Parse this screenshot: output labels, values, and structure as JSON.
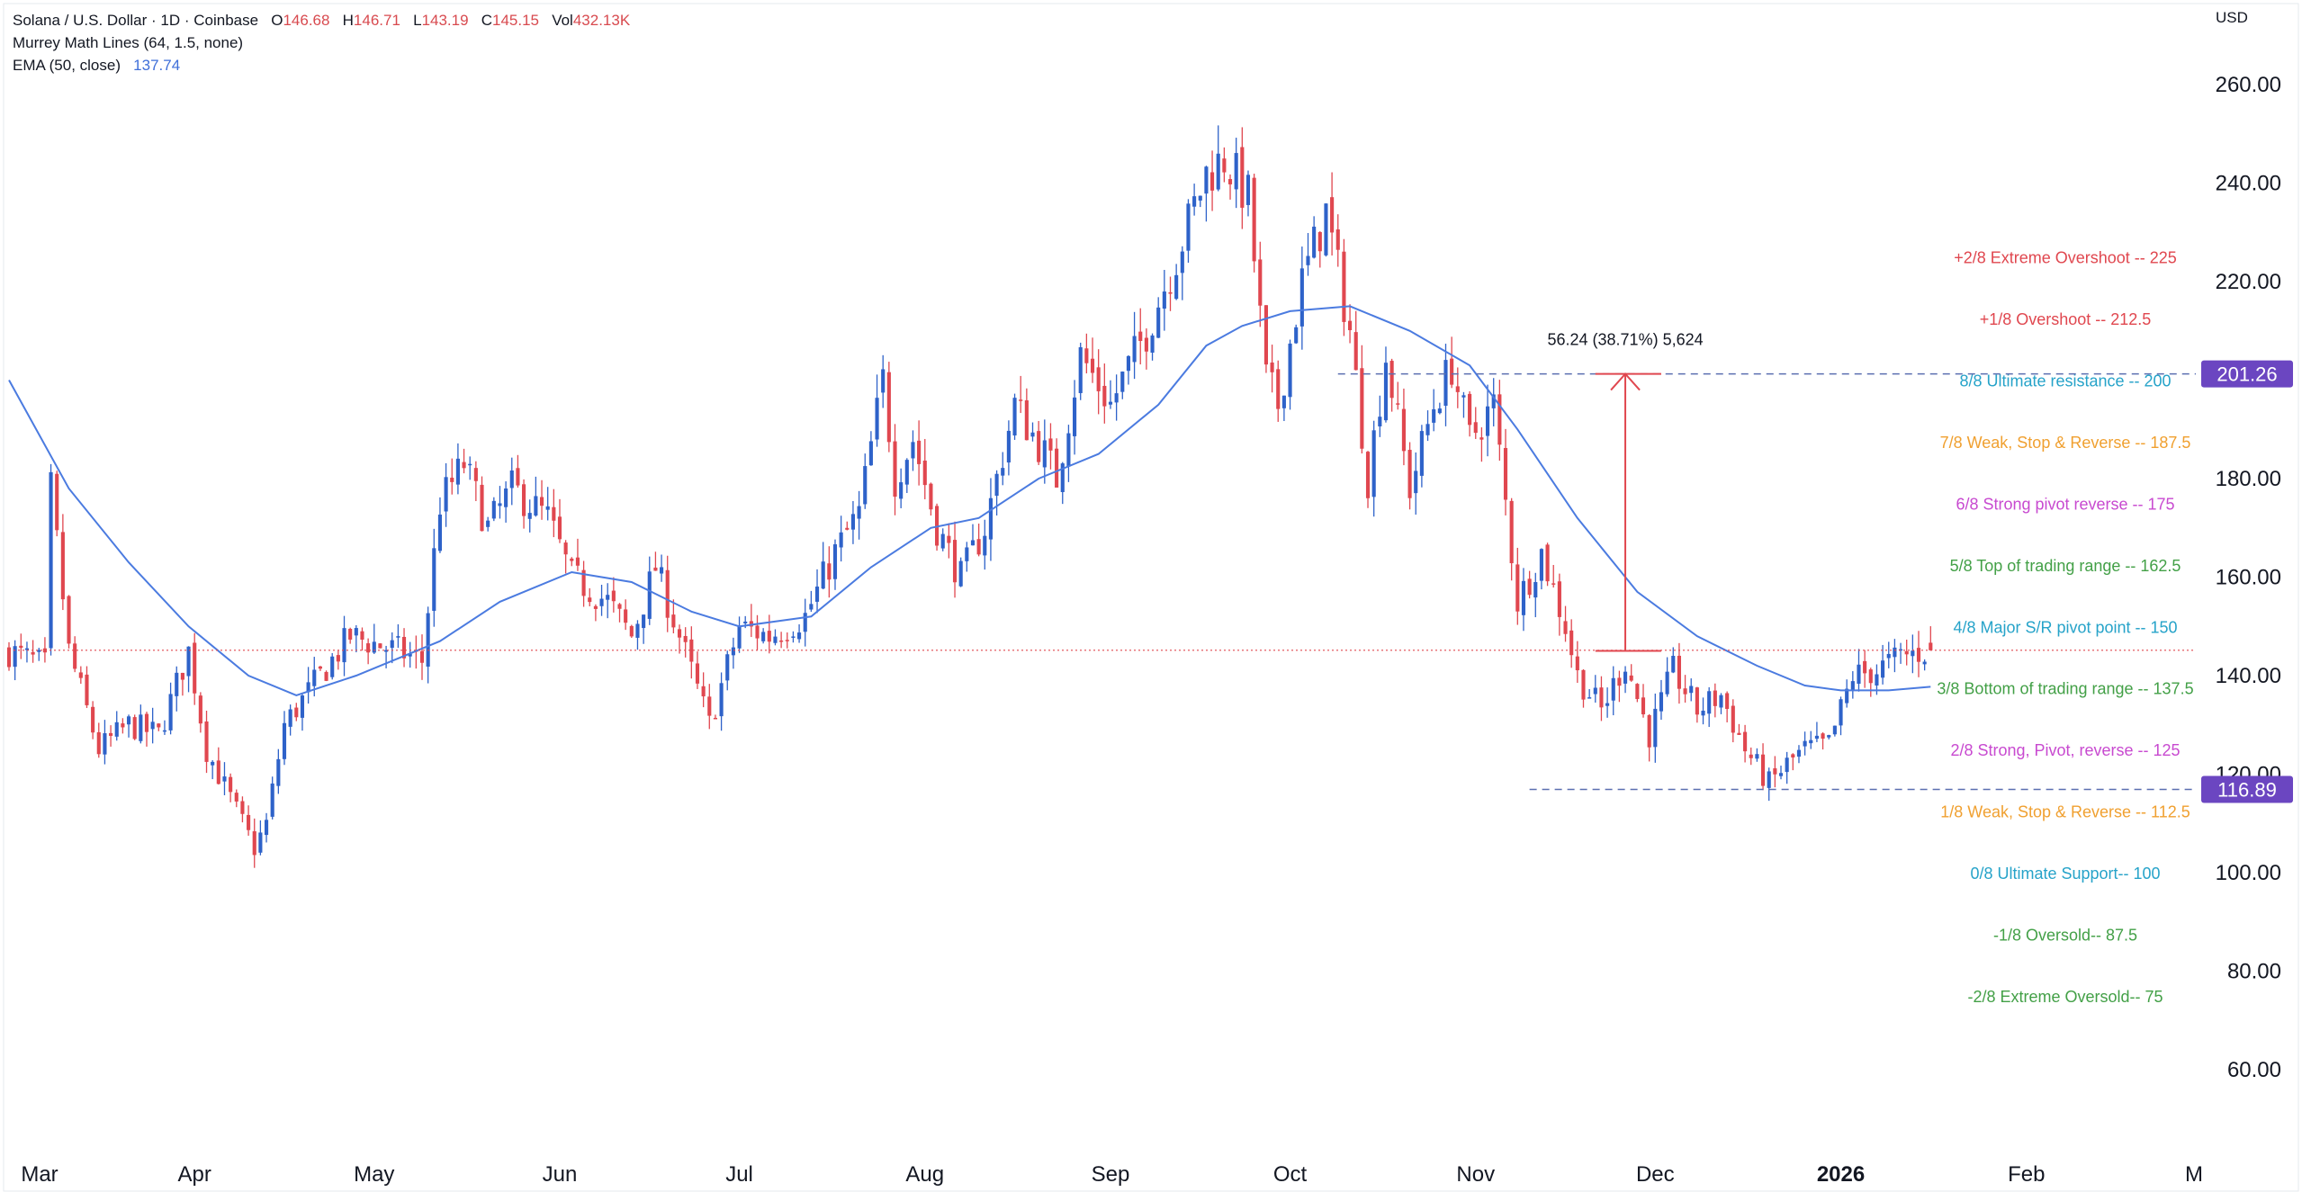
{
  "header": {
    "symbol": "Solana / U.S. Dollar · 1D · Coinbase",
    "o_label": "O",
    "o_value": "146.68",
    "h_label": "H",
    "h_value": "146.71",
    "l_label": "L",
    "l_value": "143.19",
    "c_label": "C",
    "c_value": "145.15",
    "vol_label": "Vol",
    "vol_value": "432.13K",
    "indicator_murrey": "Murrey Math Lines (64, 1.5, none)",
    "indicator_ema": "EMA (50, close)",
    "ema_value": "137.74",
    "currency": "USD"
  },
  "colors": {
    "up": "#2e62c9",
    "down": "#e0474f",
    "ema": "#4b7be0",
    "price_line": "#e0474f",
    "badge": "#6b46c1",
    "measure": "#e0474f"
  },
  "chart_data": {
    "type": "candlestick",
    "title": "Solana / U.S. Dollar · 1D · Coinbase",
    "ylim": [
      48,
      268
    ],
    "y_ticks": [
      "260.00",
      "240.00",
      "220.00",
      "200.00",
      "180.00",
      "160.00",
      "140.00",
      "120.00",
      "100.00",
      "80.00",
      "60.00"
    ],
    "y_tick_values": [
      260,
      240,
      220,
      200,
      180,
      160,
      140,
      120,
      100,
      80,
      60
    ],
    "x_ticks": [
      {
        "label": "Mar",
        "day": 0
      },
      {
        "label": "Apr",
        "day": 31
      },
      {
        "label": "May",
        "day": 61
      },
      {
        "label": "Jun",
        "day": 92
      },
      {
        "label": "Jul",
        "day": 122
      },
      {
        "label": "Aug",
        "day": 153
      },
      {
        "label": "Sep",
        "day": 184
      },
      {
        "label": "Oct",
        "day": 214
      },
      {
        "label": "Nov",
        "day": 245
      },
      {
        "label": "Dec",
        "day": 275
      },
      {
        "label": "2026",
        "day": 306,
        "bold": true
      },
      {
        "label": "Feb",
        "day": 337
      },
      {
        "label": "M",
        "day": 365
      }
    ],
    "last_day": 321,
    "current_price": 145.15,
    "badges": [
      {
        "label": "201.26",
        "value": 201.26
      },
      {
        "label": "116.89",
        "value": 116.89
      }
    ],
    "support_line": {
      "value": 116.89,
      "from_day": 254
    },
    "resistance_line": {
      "value": 201.26,
      "from_day": 222
    },
    "measure": {
      "day": 270,
      "from": 145.02,
      "to": 201.26,
      "start_day": 265,
      "end_day": 276,
      "label": "56.24 (38.71%) 5,624"
    },
    "path_keypoints": [
      [
        0,
        145
      ],
      [
        6,
        142
      ],
      [
        7,
        178
      ],
      [
        10,
        145
      ],
      [
        15,
        125
      ],
      [
        20,
        130
      ],
      [
        25,
        128
      ],
      [
        30,
        145
      ],
      [
        33,
        125
      ],
      [
        41,
        105
      ],
      [
        43,
        110
      ],
      [
        46,
        130
      ],
      [
        52,
        140
      ],
      [
        57,
        148
      ],
      [
        65,
        145
      ],
      [
        69,
        143
      ],
      [
        72,
        175
      ],
      [
        76,
        183
      ],
      [
        80,
        170
      ],
      [
        84,
        178
      ],
      [
        90,
        172
      ],
      [
        94,
        160
      ],
      [
        100,
        155
      ],
      [
        104,
        148
      ],
      [
        108,
        162
      ],
      [
        112,
        148
      ],
      [
        117,
        130
      ],
      [
        122,
        150
      ],
      [
        127,
        148
      ],
      [
        133,
        152
      ],
      [
        138,
        165
      ],
      [
        142,
        173
      ],
      [
        146,
        200
      ],
      [
        148,
        180
      ],
      [
        151,
        188
      ],
      [
        155,
        170
      ],
      [
        159,
        160
      ],
      [
        163,
        170
      ],
      [
        168,
        195
      ],
      [
        173,
        185
      ],
      [
        175,
        180
      ],
      [
        179,
        205
      ],
      [
        184,
        195
      ],
      [
        190,
        210
      ],
      [
        195,
        225
      ],
      [
        200,
        242
      ],
      [
        203,
        245
      ],
      [
        207,
        237
      ],
      [
        210,
        200
      ],
      [
        212,
        195
      ],
      [
        216,
        220
      ],
      [
        220,
        234
      ],
      [
        224,
        210
      ],
      [
        227,
        180
      ],
      [
        230,
        205
      ],
      [
        234,
        178
      ],
      [
        238,
        195
      ],
      [
        241,
        203
      ],
      [
        244,
        188
      ],
      [
        248,
        195
      ],
      [
        252,
        155
      ],
      [
        256,
        165
      ],
      [
        260,
        150
      ],
      [
        262,
        140
      ],
      [
        266,
        133
      ],
      [
        270,
        143
      ],
      [
        274,
        128
      ],
      [
        278,
        141
      ],
      [
        282,
        133
      ],
      [
        286,
        136
      ],
      [
        290,
        125
      ],
      [
        294,
        118
      ],
      [
        297,
        122
      ],
      [
        300,
        125
      ],
      [
        304,
        126
      ],
      [
        308,
        140
      ],
      [
        312,
        141
      ],
      [
        316,
        144
      ],
      [
        321,
        145.15
      ]
    ],
    "ema_50": [
      [
        0,
        200
      ],
      [
        10,
        178
      ],
      [
        20,
        163
      ],
      [
        30,
        150
      ],
      [
        40,
        140
      ],
      [
        48,
        136
      ],
      [
        58,
        140
      ],
      [
        72,
        147
      ],
      [
        82,
        155
      ],
      [
        94,
        161
      ],
      [
        104,
        159
      ],
      [
        114,
        153
      ],
      [
        122,
        150
      ],
      [
        134,
        152
      ],
      [
        144,
        162
      ],
      [
        154,
        170
      ],
      [
        162,
        172
      ],
      [
        172,
        180
      ],
      [
        182,
        185
      ],
      [
        192,
        195
      ],
      [
        200,
        207
      ],
      [
        206,
        211
      ],
      [
        214,
        214
      ],
      [
        224,
        215
      ],
      [
        234,
        210
      ],
      [
        244,
        203
      ],
      [
        252,
        190
      ],
      [
        262,
        172
      ],
      [
        272,
        157
      ],
      [
        282,
        148
      ],
      [
        292,
        142
      ],
      [
        300,
        138
      ],
      [
        306,
        137
      ],
      [
        314,
        137
      ],
      [
        321,
        137.74
      ]
    ],
    "murrey_levels": [
      {
        "label": "+2/8 Extreme Overshoot --  225",
        "value": 225,
        "color": "#e0474f"
      },
      {
        "label": "+1/8 Overshoot --  212.5",
        "value": 212.5,
        "color": "#e0474f"
      },
      {
        "label": "8/8 Ultimate resistance --  200",
        "value": 200,
        "color": "#26a3c9"
      },
      {
        "label": "7/8 Weak, Stop & Reverse --  187.5",
        "value": 187.5,
        "color": "#f0a030"
      },
      {
        "label": "6/8 Strong pivot reverse --  175",
        "value": 175,
        "color": "#c84ad0"
      },
      {
        "label": "5/8 Top of trading range --  162.5",
        "value": 162.5,
        "color": "#43a047"
      },
      {
        "label": "4/8 Major S/R pivot point --  150",
        "value": 150,
        "color": "#26a3c9"
      },
      {
        "label": "3/8 Bottom of trading range --  137.5",
        "value": 137.5,
        "color": "#43a047"
      },
      {
        "label": "2/8 Strong, Pivot, reverse --  125",
        "value": 125,
        "color": "#c84ad0"
      },
      {
        "label": "1/8 Weak, Stop & Reverse --  112.5",
        "value": 112.5,
        "color": "#f0a030"
      },
      {
        "label": "0/8 Ultimate Support--  100",
        "value": 100,
        "color": "#26a3c9"
      },
      {
        "label": "-1/8 Oversold--  87.5",
        "value": 87.5,
        "color": "#43a047"
      },
      {
        "label": "-2/8 Extreme Oversold--  75",
        "value": 75,
        "color": "#43a047"
      }
    ]
  }
}
